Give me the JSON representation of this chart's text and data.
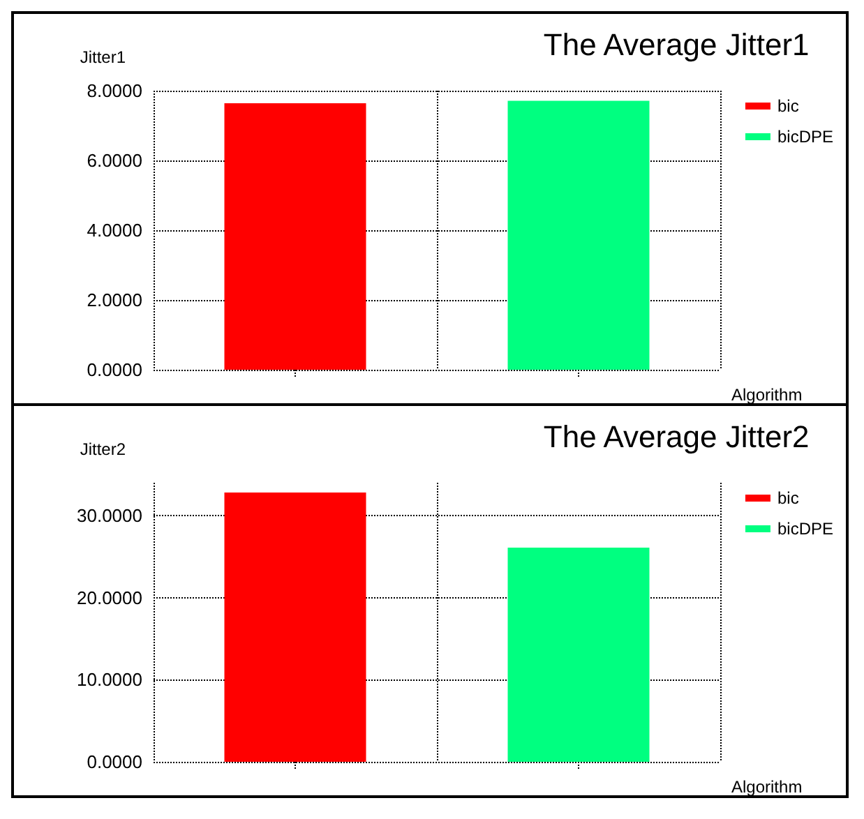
{
  "chart_data": [
    {
      "type": "bar",
      "title": "The Average Jitter1",
      "ylabel": "Jitter1",
      "xlabel": "Algorithm",
      "categories": [
        null,
        null
      ],
      "series": [
        {
          "name": "bic",
          "color": "#ff0000",
          "values": [
            7.64,
            null
          ]
        },
        {
          "name": "bicDPE",
          "color": "#00ff80",
          "values": [
            null,
            7.71
          ]
        }
      ],
      "ylim": [
        0,
        8
      ],
      "yticks": [
        {
          "value": 0,
          "label": "0.0000"
        },
        {
          "value": 2,
          "label": "2.0000"
        },
        {
          "value": 4,
          "label": "4.0000"
        },
        {
          "value": 6,
          "label": "6.0000"
        },
        {
          "value": 8,
          "label": "8.0000"
        }
      ],
      "grid": true,
      "legend": "top right"
    },
    {
      "type": "bar",
      "title": "The Average Jitter2",
      "ylabel": "Jitter2",
      "xlabel": "Algorithm",
      "categories": [
        null,
        null
      ],
      "series": [
        {
          "name": "bic",
          "color": "#ff0000",
          "values": [
            32.8,
            null
          ]
        },
        {
          "name": "bicDPE",
          "color": "#00ff80",
          "values": [
            null,
            26.1
          ]
        }
      ],
      "ylim": [
        0,
        34
      ],
      "yticks": [
        {
          "value": 0,
          "label": "0.0000"
        },
        {
          "value": 10,
          "label": "10.0000"
        },
        {
          "value": 20,
          "label": "20.0000"
        },
        {
          "value": 30,
          "label": "30.0000"
        }
      ],
      "grid": true,
      "legend": "top right"
    }
  ]
}
